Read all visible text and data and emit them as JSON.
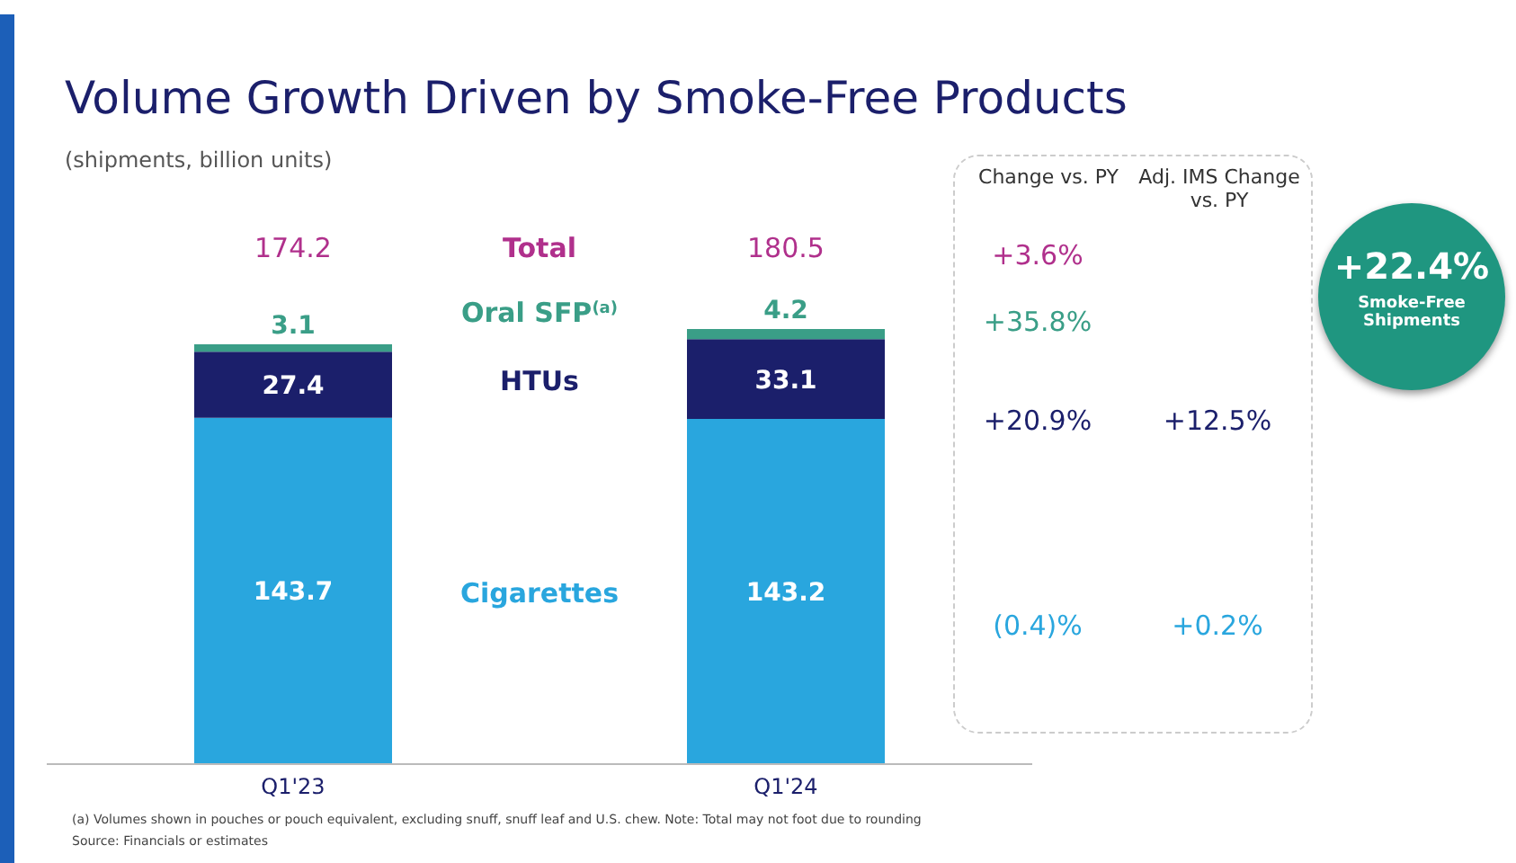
{
  "chart_data": {
    "type": "bar",
    "title": "Volume Growth Driven by Smoke-Free Products",
    "subtitle": "(shipments, billion units)",
    "categories": [
      "Q1'23",
      "Q1'24"
    ],
    "stacked": true,
    "data_labels": true,
    "legend": false,
    "series": [
      {
        "name": "Cigarettes",
        "color": "#29a6de",
        "values": [
          143.7,
          143.2
        ]
      },
      {
        "name": "HTUs",
        "color": "#1b1f6b",
        "values": [
          27.4,
          33.1
        ]
      },
      {
        "name": "Oral SFP$^{(a)}$",
        "color": "#3a9e87",
        "values": [
          3.1,
          4.2
        ]
      }
    ],
    "totals": [
      "174.2",
      "180.5"
    ],
    "annotations": [
      "Total",
      "Change vs. PY",
      "Adj. IMS Change vs. PY",
      "+3.6%",
      "+35.8%",
      "+20.9%",
      "+12.5%",
      "(0.4)%",
      "+0.2%",
      "+22.4%",
      "Smoke-Free Shipments",
      "(a) Volumes shown in pouches or pouch equivalent, excluding snuff, snuff leaf and U.S. chew. Note: Total may not foot due to rounding",
      "Source: Financials or estimates"
    ]
  }
}
